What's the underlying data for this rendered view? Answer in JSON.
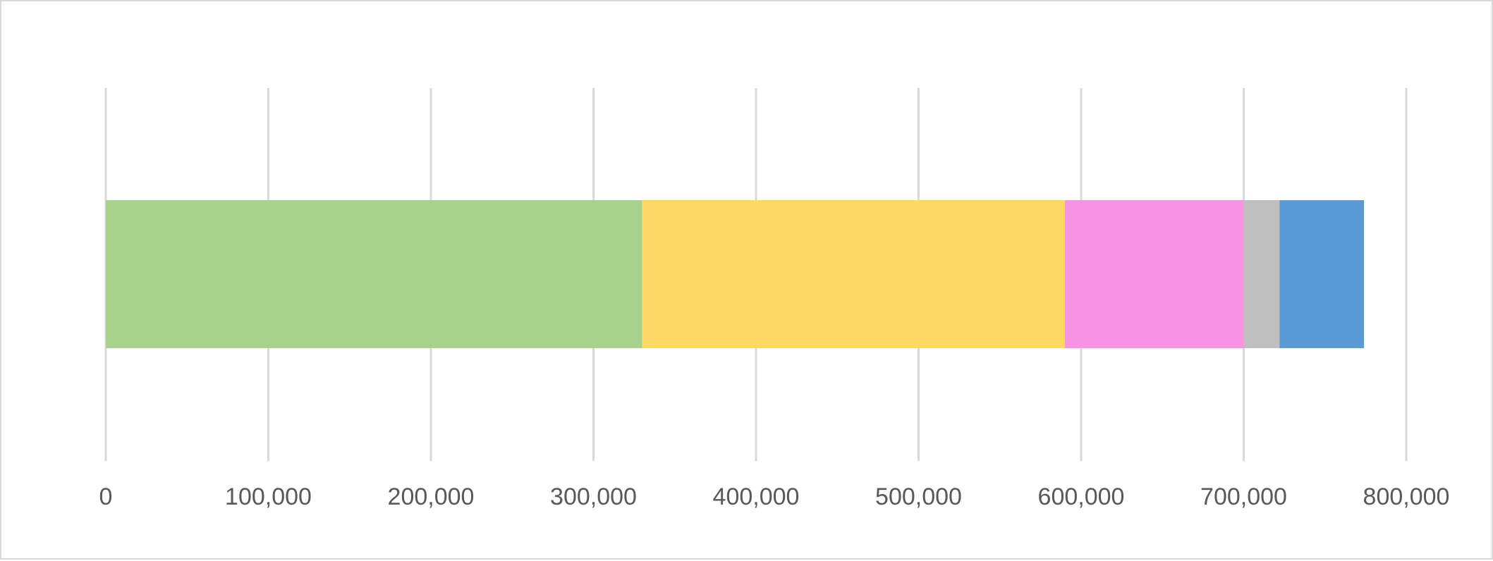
{
  "chart_data": {
    "type": "bar",
    "orientation": "horizontal",
    "stacked": true,
    "categories": [
      ""
    ],
    "series": [
      {
        "values": [
          330000
        ],
        "color": "#a9d18e"
      },
      {
        "values": [
          260000
        ],
        "color": "#ffd966"
      },
      {
        "values": [
          110000
        ],
        "color": "#f894e2"
      },
      {
        "values": [
          22000
        ],
        "color": "#bfbfbf"
      },
      {
        "values": [
          52000
        ],
        "color": "#5b9bd5"
      }
    ],
    "xlim": [
      0,
      800000
    ],
    "x_ticks": [
      0,
      100000,
      200000,
      300000,
      400000,
      500000,
      600000,
      700000,
      800000
    ],
    "x_tick_labels": [
      "0",
      "100,000",
      "200,000",
      "300,000",
      "400,000",
      "500,000",
      "600,000",
      "700,000",
      "800,000"
    ],
    "grid": true,
    "gridline_color": "#d9d9d9",
    "title": "",
    "xlabel": "",
    "ylabel": "",
    "legend": "none"
  }
}
